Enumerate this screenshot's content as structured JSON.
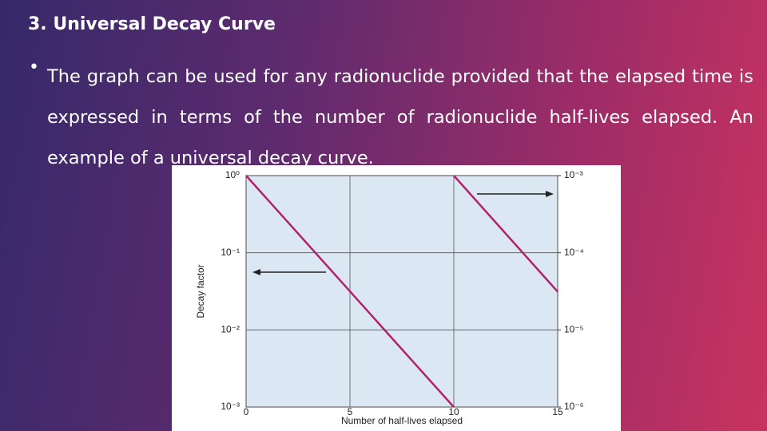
{
  "slide": {
    "title": "3. Universal Decay Curve",
    "bullet": "The graph can be used for any radionuclide provided that the elapsed time is expressed in terms of the number of radionuclide half-lives elapsed. An example of a universal decay curve."
  },
  "chart_data": {
    "type": "line",
    "xlabel": "Number of half-lives elapsed",
    "ylabel": "Decay factor",
    "xlim": [
      0,
      15
    ],
    "xticks": [
      0,
      5,
      10,
      15
    ],
    "ylim": [
      0.001,
      1
    ],
    "yscale": "log",
    "yticks": [
      {
        "value": 1,
        "label": "10⁰"
      },
      {
        "value": 0.1,
        "label": "10⁻¹"
      },
      {
        "value": 0.01,
        "label": "10⁻²"
      },
      {
        "value": 0.001,
        "label": "10⁻³"
      }
    ],
    "y2lim": [
      1e-06,
      0.001
    ],
    "y2ticks": [
      {
        "value": 0.001,
        "label": "10⁻³"
      },
      {
        "value": 0.0001,
        "label": "10⁻⁴"
      },
      {
        "value": 1e-05,
        "label": "10⁻⁵"
      },
      {
        "value": 1e-06,
        "label": "10⁻⁶"
      }
    ],
    "grid": true,
    "series": [
      {
        "color": "#b0226c",
        "x": [
          0,
          10
        ],
        "values": [
          1,
          0.001
        ]
      },
      {
        "color": "#b0226c",
        "axis": "y2",
        "x": [
          10,
          15
        ],
        "values": [
          0.001,
          3.125e-05
        ]
      }
    ]
  }
}
